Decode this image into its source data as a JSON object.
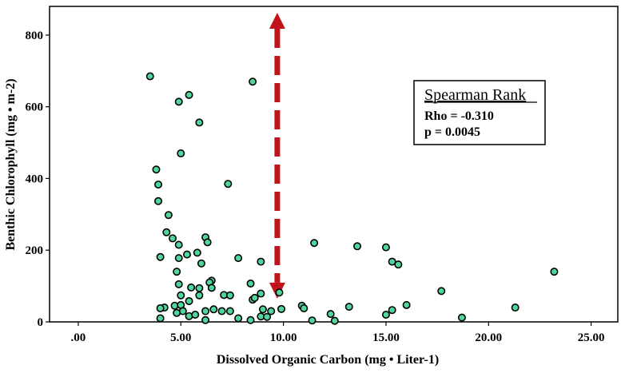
{
  "chart_data": {
    "type": "scatter",
    "title": "",
    "xlabel": "Dissolved Organic Carbon (mg • Liter-1)",
    "ylabel": "Benthic Chlorophyll (mg • m-2)",
    "xlim": [
      -1.4,
      26.3
    ],
    "ylim": [
      0,
      880
    ],
    "x_ticks": [
      0,
      5,
      10,
      15,
      20,
      25
    ],
    "x_tick_labels": [
      ".00",
      "5.00",
      "10.00",
      "15.00",
      "20.00",
      "25.00"
    ],
    "y_ticks": [
      0,
      200,
      400,
      600,
      800
    ],
    "y_tick_labels": [
      "0",
      "200",
      "400",
      "600",
      "800"
    ],
    "grid": false,
    "point_color": "#4fd69c",
    "point_edge": "#000000",
    "series": [
      {
        "points": [
          [
            3.5,
            685
          ],
          [
            5.4,
            633
          ],
          [
            4.9,
            614
          ],
          [
            8.5,
            670
          ],
          [
            5.9,
            556
          ],
          [
            5.0,
            470
          ],
          [
            7.3,
            385
          ],
          [
            3.8,
            425
          ],
          [
            3.9,
            383
          ],
          [
            3.9,
            337
          ],
          [
            4.4,
            298
          ],
          [
            4.3,
            250
          ],
          [
            4.6,
            233
          ],
          [
            4.9,
            215
          ],
          [
            6.2,
            236
          ],
          [
            6.3,
            222
          ],
          [
            5.3,
            188
          ],
          [
            5.8,
            193
          ],
          [
            4.0,
            181
          ],
          [
            4.9,
            178
          ],
          [
            6.0,
            163
          ],
          [
            7.8,
            178
          ],
          [
            8.9,
            168
          ],
          [
            4.8,
            140
          ],
          [
            4.9,
            105
          ],
          [
            5.5,
            96
          ],
          [
            6.5,
            115
          ],
          [
            6.4,
            110
          ],
          [
            6.5,
            95
          ],
          [
            5.9,
            94
          ],
          [
            5.0,
            74
          ],
          [
            5.9,
            74
          ],
          [
            7.1,
            75
          ],
          [
            7.4,
            74
          ],
          [
            8.4,
            107
          ],
          [
            8.9,
            79
          ],
          [
            9.8,
            82
          ],
          [
            8.5,
            62
          ],
          [
            8.6,
            67
          ],
          [
            4.2,
            40
          ],
          [
            4.0,
            38
          ],
          [
            4.7,
            45
          ],
          [
            5.0,
            47
          ],
          [
            5.4,
            58
          ],
          [
            5.1,
            30
          ],
          [
            6.2,
            30
          ],
          [
            6.6,
            35
          ],
          [
            7.0,
            30
          ],
          [
            7.4,
            30
          ],
          [
            9.0,
            35
          ],
          [
            9.4,
            30
          ],
          [
            9.9,
            36
          ],
          [
            10.9,
            45
          ],
          [
            11.0,
            38
          ],
          [
            12.3,
            22
          ],
          [
            13.2,
            42
          ],
          [
            4.0,
            10
          ],
          [
            4.8,
            25
          ],
          [
            5.4,
            16
          ],
          [
            5.7,
            20
          ],
          [
            6.2,
            5
          ],
          [
            7.8,
            10
          ],
          [
            8.4,
            5
          ],
          [
            8.9,
            15
          ],
          [
            9.2,
            14
          ],
          [
            11.4,
            4
          ],
          [
            12.5,
            3
          ],
          [
            15.0,
            20
          ],
          [
            15.3,
            33
          ],
          [
            16.0,
            47
          ],
          [
            17.7,
            86
          ],
          [
            11.5,
            220
          ],
          [
            13.6,
            211
          ],
          [
            15.0,
            208
          ],
          [
            15.3,
            168
          ],
          [
            15.6,
            160
          ],
          [
            18.7,
            12
          ],
          [
            21.3,
            40
          ],
          [
            23.2,
            140
          ]
        ]
      }
    ],
    "annotations": {
      "stats_box": {
        "title": "Spearman Rank",
        "lines": [
          "Rho = -0.310",
          "p = 0.0045"
        ]
      },
      "arrow": {
        "type": "dashed-double-arrow",
        "color": "#c0141a",
        "x": 9.7,
        "y_from": 880,
        "y_to": 65
      }
    }
  }
}
